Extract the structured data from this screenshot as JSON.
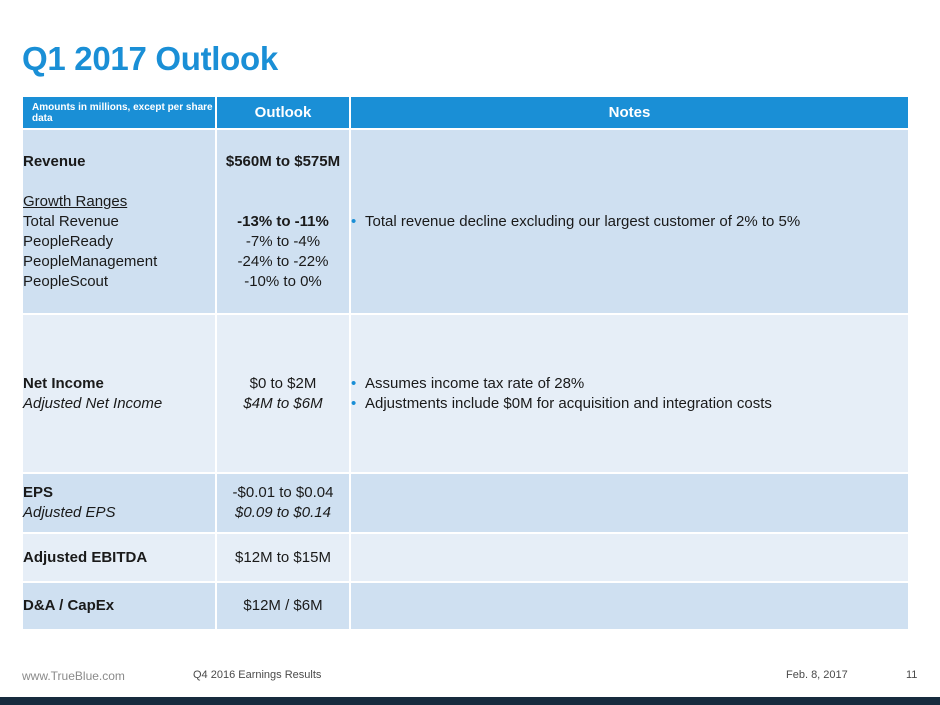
{
  "title": "Q1 2017 Outlook",
  "table": {
    "headers": {
      "amounts": "Amounts in millions, except per share data",
      "outlook": "Outlook",
      "notes": "Notes"
    },
    "revenue": {
      "label": "Revenue",
      "value": "$560M to $575M",
      "growth_heading": "Growth Ranges",
      "growth": [
        {
          "label": "Total Revenue",
          "value": "-13% to -11%"
        },
        {
          "label": "PeopleReady",
          "value": "-7% to -4%"
        },
        {
          "label": "PeopleManagement",
          "value": "-24% to -22%"
        },
        {
          "label": "PeopleScout",
          "value": "-10% to 0%"
        }
      ],
      "notes": [
        "Total revenue decline excluding our largest customer of 2% to 5%"
      ]
    },
    "net_income": {
      "label": "Net Income",
      "value": "$0 to $2M",
      "adj_label": "Adjusted Net Income",
      "adj_value": "$4M to $6M",
      "notes": [
        "Assumes income tax rate of 28%",
        "Adjustments include $0M for acquisition and integration costs"
      ]
    },
    "eps": {
      "label": "EPS",
      "value": "-$0.01 to $0.04",
      "adj_label": "Adjusted EPS",
      "adj_value": "$0.09 to $0.14"
    },
    "ebitda": {
      "label": "Adjusted EBITDA",
      "value": "$12M to $15M"
    },
    "da_capex": {
      "label": "D&A / CapEx",
      "value": "$12M / $6M"
    }
  },
  "footer": {
    "url": "www.TrueBlue.com",
    "deck": "Q4 2016 Earnings Results",
    "date": "Feb. 8, 2017",
    "page": "11"
  },
  "colors": {
    "accent": "#1a8fd6",
    "row_dark": "#cfe0f1",
    "row_light": "#e6eef7",
    "bottom_bar": "#172b3e"
  }
}
